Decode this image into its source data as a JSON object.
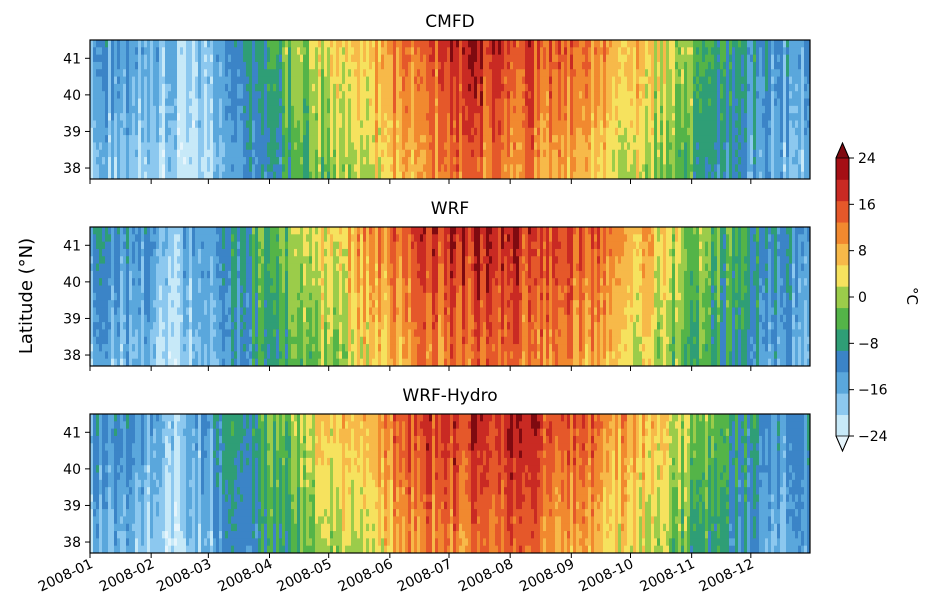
{
  "chart_data": {
    "type": "heatmap",
    "ylabel": "Latitude (°N)",
    "x_ticks": [
      "2008-01",
      "2008-02",
      "2008-03",
      "2008-04",
      "2008-05",
      "2008-06",
      "2008-07",
      "2008-08",
      "2008-09",
      "2008-10",
      "2008-11",
      "2008-12"
    ],
    "xlim": [
      "2008-01-01",
      "2008-12-31"
    ],
    "ylim": [
      37.7,
      41.5
    ],
    "y_ticks": [
      "38",
      "39",
      "40",
      "41"
    ],
    "colorbar": {
      "label": "°C",
      "ticks": [
        "24",
        "16",
        "8",
        "0",
        "−8",
        "−16",
        "−24"
      ],
      "range": [
        -24,
        24
      ],
      "extend": "both",
      "levels": [
        -24,
        -20,
        -16,
        -12,
        -8,
        -4,
        0,
        4,
        8,
        12,
        16,
        20,
        24
      ],
      "colors": [
        "#c7e9f8",
        "#8cc8ef",
        "#5aa7dc",
        "#3b84c7",
        "#2f9e76",
        "#54b448",
        "#9bcc4a",
        "#f6e25e",
        "#f7b949",
        "#f1892f",
        "#e5582a",
        "#c92a23",
        "#a50f15"
      ],
      "under_color": "#e6f5fc",
      "over_color": "#7f0a10"
    },
    "panels": [
      {
        "title": "CMFD",
        "monthly_mean_north": [
          -12,
          -19,
          -10,
          2,
          10,
          18,
          22,
          20,
          16,
          6,
          -4,
          -12
        ],
        "monthly_mean_south": [
          -18,
          -22,
          -14,
          -4,
          4,
          12,
          15,
          14,
          9,
          0,
          -8,
          -16
        ]
      },
      {
        "title": "WRF",
        "monthly_mean_north": [
          -10,
          -16,
          -6,
          4,
          12,
          20,
          23,
          21,
          17,
          7,
          -2,
          -10
        ],
        "monthly_mean_south": [
          -16,
          -20,
          -10,
          -2,
          6,
          13,
          16,
          15,
          10,
          2,
          -6,
          -14
        ]
      },
      {
        "title": "WRF-Hydro",
        "monthly_mean_north": [
          -11,
          -17,
          -7,
          3,
          12,
          20,
          23,
          21,
          17,
          7,
          -2,
          -11
        ],
        "monthly_mean_south": [
          -17,
          -21,
          -11,
          -3,
          5,
          13,
          16,
          14,
          10,
          1,
          -7,
          -15
        ]
      }
    ]
  }
}
